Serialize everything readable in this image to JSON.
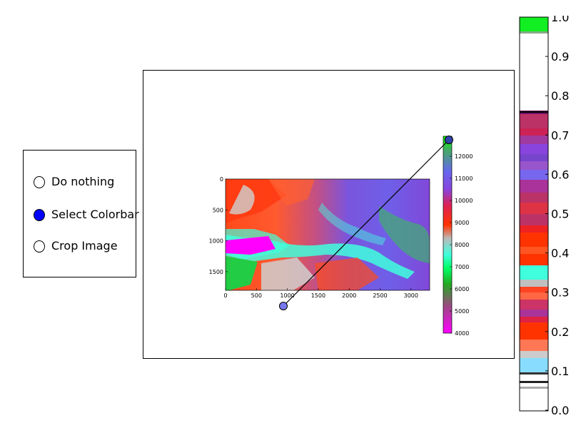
{
  "radio_options": [
    {
      "label": "Do nothing",
      "selected": false
    },
    {
      "label": "Select Colorbar",
      "selected": true
    },
    {
      "label": "Crop Image",
      "selected": false
    }
  ],
  "inner_image": {
    "x_ticks": [
      "0",
      "500",
      "1000",
      "1500",
      "2000",
      "2500",
      "3000"
    ],
    "y_ticks": [
      "0",
      "500",
      "1000",
      "1500"
    ]
  },
  "inner_colorbar": {
    "ticks": [
      "12000",
      "11000",
      "10000",
      "9000",
      "8000",
      "7000",
      "6000",
      "5000",
      "4000"
    ]
  },
  "big_colorbar": {
    "ticks": [
      "1.0",
      "0.9",
      "0.8",
      "0.7",
      "0.6",
      "0.5",
      "0.4",
      "0.3",
      "0.2",
      "0.1",
      "0.0"
    ]
  },
  "colors": {
    "magenta": "#ff00ff",
    "green": "#00dd33",
    "cyan": "#40ffdd",
    "red": "#ff3300",
    "purple": "#8844dd",
    "blue": "#6666ee",
    "marker": "#7777ee",
    "radio_selected": "#0000ff"
  }
}
